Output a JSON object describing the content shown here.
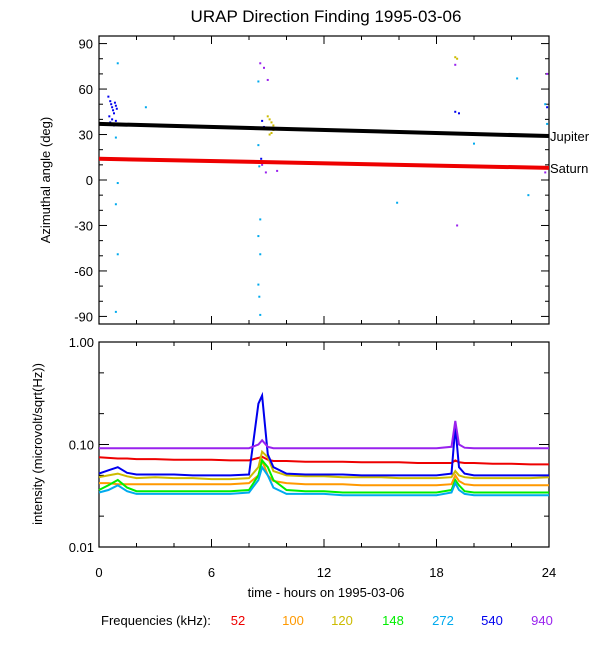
{
  "title": "URAP Direction Finding  1995-03-06",
  "xlabel": "time - hours on 1995-03-06",
  "x_ticks": [
    "0",
    "6",
    "12",
    "18",
    "24"
  ],
  "legend_label": "Frequencies (kHz):",
  "freq_colors": {
    "52": "#ee0000",
    "100": "#ff9900",
    "120": "#ccbb00",
    "148": "#00ee00",
    "272": "#00aaee",
    "540": "#0000ee",
    "940": "#9922ee"
  },
  "chart_data": [
    {
      "type": "scatter",
      "title": "URAP Direction Finding  1995-03-06",
      "xlabel": "time - hours on 1995-03-06",
      "ylabel": "Azimuthal angle (deg)",
      "xlim": [
        0,
        24
      ],
      "ylim": [
        -95,
        95
      ],
      "y_ticks": [
        "90",
        "60",
        "30",
        "0",
        "-30",
        "-60",
        "-90"
      ],
      "planets": [
        {
          "name": "Jupiter",
          "color": "#000000",
          "x": [
            0,
            24
          ],
          "y": [
            37,
            29
          ]
        },
        {
          "name": "Saturn",
          "color": "#ee0000",
          "x": [
            0,
            24
          ],
          "y": [
            14,
            8
          ]
        }
      ],
      "points": [
        {
          "freq": "540",
          "x": [
            0.5,
            0.6,
            0.65,
            0.7,
            0.75,
            0.8,
            0.85,
            0.9,
            0.95,
            0.55,
            0.7,
            0.6,
            0.8,
            0.9,
            8.7,
            8.8,
            8.65,
            19.0,
            19.2,
            23.9
          ],
          "y": [
            55,
            52,
            50,
            48,
            46,
            44,
            51,
            49,
            47,
            42,
            40,
            38,
            36,
            39,
            39,
            35,
            14,
            45,
            44,
            48
          ]
        },
        {
          "freq": "272",
          "x": [
            1.0,
            0.9,
            1.0,
            0.9,
            1.0,
            0.9,
            2.5,
            8.5,
            8.55,
            8.6,
            8.5,
            8.6,
            8.5,
            8.55,
            8.6,
            8.5,
            15.9,
            20.0,
            22.3,
            22.9,
            23.8,
            23.9
          ],
          "y": [
            77,
            28,
            -49,
            -16,
            -2,
            -87,
            48,
            23,
            9,
            -26,
            -37,
            -49,
            -69,
            -77,
            -89,
            65,
            -15,
            24,
            67,
            -10,
            50,
            37
          ]
        },
        {
          "freq": "120",
          "x": [
            9.0,
            9.1,
            9.2,
            9.3,
            9.0,
            9.2,
            9.1,
            9.3,
            19.0,
            19.1
          ],
          "y": [
            42,
            40,
            38,
            36,
            34,
            31,
            30,
            33,
            81,
            80
          ]
        },
        {
          "freq": "940",
          "x": [
            8.6,
            8.8,
            9.0,
            8.9,
            8.7,
            9.5,
            19.0,
            19.1,
            23.9,
            23.8
          ],
          "y": [
            77,
            74,
            66,
            5,
            10,
            6,
            76,
            -30,
            70,
            5
          ]
        }
      ]
    },
    {
      "type": "line",
      "xlabel": "time - hours on 1995-03-06",
      "ylabel": "intensity (microvolt/sqrt(Hz))",
      "xlim": [
        0,
        24
      ],
      "ylim": [
        0.01,
        1.0
      ],
      "y_scale": "log",
      "y_ticks": [
        "1.00",
        "0.10",
        "0.01"
      ],
      "x": [
        0,
        0.5,
        1,
        1.5,
        2,
        3,
        4,
        5,
        6,
        7,
        8,
        8.5,
        8.7,
        9,
        9.3,
        10,
        11,
        12,
        13,
        14,
        15,
        16,
        17,
        18,
        18.8,
        19.0,
        19.2,
        19.5,
        20,
        21,
        22,
        23,
        24
      ],
      "series": [
        {
          "name": "52",
          "values": [
            0.075,
            0.074,
            0.073,
            0.073,
            0.072,
            0.072,
            0.071,
            0.071,
            0.071,
            0.07,
            0.07,
            0.074,
            0.076,
            0.071,
            0.069,
            0.069,
            0.068,
            0.068,
            0.068,
            0.067,
            0.067,
            0.067,
            0.066,
            0.066,
            0.066,
            0.07,
            0.067,
            0.066,
            0.066,
            0.065,
            0.065,
            0.064,
            0.064
          ]
        },
        {
          "name": "100",
          "values": [
            0.042,
            0.042,
            0.041,
            0.041,
            0.041,
            0.041,
            0.041,
            0.041,
            0.041,
            0.041,
            0.042,
            0.05,
            0.07,
            0.05,
            0.044,
            0.042,
            0.041,
            0.041,
            0.041,
            0.04,
            0.04,
            0.04,
            0.04,
            0.04,
            0.041,
            0.05,
            0.044,
            0.041,
            0.04,
            0.04,
            0.04,
            0.04,
            0.04
          ]
        },
        {
          "name": "120",
          "values": [
            0.048,
            0.05,
            0.052,
            0.049,
            0.047,
            0.048,
            0.047,
            0.047,
            0.046,
            0.046,
            0.047,
            0.06,
            0.085,
            0.075,
            0.055,
            0.05,
            0.049,
            0.049,
            0.048,
            0.048,
            0.048,
            0.047,
            0.047,
            0.047,
            0.048,
            0.055,
            0.05,
            0.048,
            0.047,
            0.047,
            0.047,
            0.047,
            0.048
          ]
        },
        {
          "name": "148",
          "values": [
            0.036,
            0.04,
            0.045,
            0.038,
            0.035,
            0.035,
            0.035,
            0.035,
            0.035,
            0.035,
            0.036,
            0.05,
            0.07,
            0.06,
            0.045,
            0.036,
            0.035,
            0.035,
            0.034,
            0.034,
            0.034,
            0.034,
            0.034,
            0.034,
            0.036,
            0.045,
            0.04,
            0.035,
            0.034,
            0.034,
            0.034,
            0.034,
            0.034
          ]
        },
        {
          "name": "272",
          "values": [
            0.034,
            0.036,
            0.04,
            0.035,
            0.033,
            0.033,
            0.033,
            0.033,
            0.033,
            0.033,
            0.034,
            0.045,
            0.06,
            0.05,
            0.038,
            0.033,
            0.033,
            0.033,
            0.032,
            0.032,
            0.032,
            0.032,
            0.032,
            0.032,
            0.034,
            0.042,
            0.036,
            0.033,
            0.032,
            0.032,
            0.032,
            0.032,
            0.032
          ]
        },
        {
          "name": "540",
          "values": [
            0.052,
            0.056,
            0.06,
            0.053,
            0.051,
            0.051,
            0.051,
            0.05,
            0.05,
            0.05,
            0.051,
            0.25,
            0.3,
            0.08,
            0.06,
            0.052,
            0.051,
            0.051,
            0.051,
            0.05,
            0.05,
            0.05,
            0.05,
            0.05,
            0.052,
            0.15,
            0.06,
            0.052,
            0.05,
            0.05,
            0.05,
            0.05,
            0.05
          ]
        },
        {
          "name": "940",
          "values": [
            0.092,
            0.092,
            0.092,
            0.092,
            0.092,
            0.092,
            0.092,
            0.092,
            0.092,
            0.092,
            0.092,
            0.1,
            0.11,
            0.095,
            0.092,
            0.092,
            0.092,
            0.092,
            0.092,
            0.092,
            0.092,
            0.092,
            0.092,
            0.092,
            0.095,
            0.17,
            0.1,
            0.093,
            0.092,
            0.092,
            0.092,
            0.092,
            0.092
          ]
        }
      ]
    }
  ]
}
